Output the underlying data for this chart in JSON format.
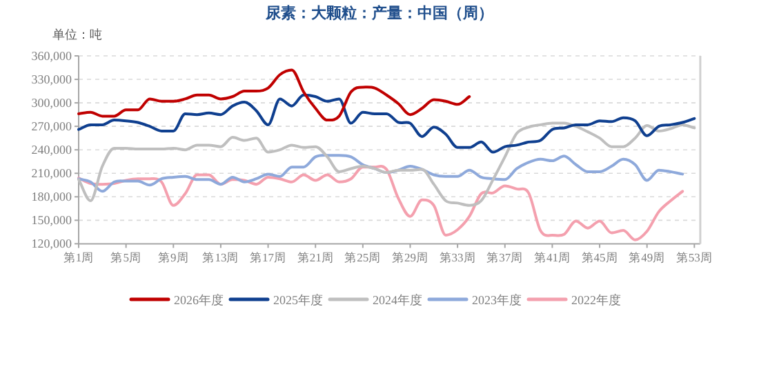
{
  "chart_data": {
    "type": "line",
    "title": "尿素：大颗粒：产量：中国（周）",
    "ylabel": "单位：吨",
    "categories": [
      "第1周",
      null,
      null,
      null,
      "第5周",
      null,
      null,
      null,
      "第9周",
      null,
      null,
      null,
      "第13周",
      null,
      null,
      null,
      "第17周",
      null,
      null,
      null,
      "第21周",
      null,
      null,
      null,
      "第25周",
      null,
      null,
      null,
      "第29周",
      null,
      null,
      null,
      "第33周",
      null,
      null,
      null,
      "第37周",
      null,
      null,
      null,
      "第41周",
      null,
      null,
      null,
      "第45周",
      null,
      null,
      null,
      "第49周",
      null,
      null,
      null,
      "第53周"
    ],
    "ylim": [
      120000,
      360000
    ],
    "yticks": [
      {
        "value": 120000,
        "label": "120,000"
      },
      {
        "value": 150000,
        "label": "150,000"
      },
      {
        "value": 180000,
        "label": "180,000"
      },
      {
        "value": 210000,
        "label": "210,000"
      },
      {
        "value": 240000,
        "label": "240,000"
      },
      {
        "value": 270000,
        "label": "270,000"
      },
      {
        "value": 300000,
        "label": "300,000"
      },
      {
        "value": 330000,
        "label": "330,000"
      },
      {
        "value": 360000,
        "label": "360,000"
      }
    ],
    "grid": "y",
    "legend": "bottom",
    "marker": "none",
    "line_style": "solid",
    "series": [
      {
        "name": "2026年度",
        "color": "#c00000",
        "values": [
          286000,
          288000,
          283000,
          283000,
          291000,
          291000,
          305000,
          302000,
          302000,
          305000,
          310000,
          310000,
          305000,
          308000,
          315000,
          315000,
          319000,
          336000,
          342000,
          314000,
          293000,
          278000,
          283000,
          314000,
          320000,
          319000,
          310000,
          299000,
          285000,
          293000,
          304000,
          302000,
          298000,
          308000,
          null,
          null,
          null,
          null,
          null,
          null,
          null,
          null,
          null,
          null,
          null,
          null,
          null,
          null,
          null,
          null,
          null,
          null,
          null
        ]
      },
      {
        "name": "2025年度",
        "color": "#0f3f8f",
        "values": [
          266000,
          272000,
          272000,
          278000,
          277000,
          275000,
          270000,
          264000,
          264000,
          286000,
          285000,
          287000,
          285000,
          296000,
          301000,
          290000,
          272000,
          305000,
          296000,
          310000,
          308000,
          302000,
          305000,
          274000,
          288000,
          286000,
          286000,
          275000,
          274000,
          257000,
          269000,
          260000,
          243000,
          243000,
          250000,
          237000,
          244000,
          246000,
          250000,
          252000,
          266000,
          268000,
          272000,
          272000,
          277000,
          276000,
          281000,
          277000,
          258000,
          270000,
          272000,
          275000,
          280000
        ]
      },
      {
        "name": "2024年度",
        "color": "#bfbfbf",
        "values": [
          202000,
          175000,
          219000,
          242000,
          242000,
          241000,
          241000,
          241000,
          242000,
          240000,
          246000,
          246000,
          244000,
          256000,
          252000,
          255000,
          237000,
          240000,
          246000,
          243000,
          244000,
          231000,
          212000,
          216000,
          219000,
          216000,
          211000,
          214000,
          214000,
          215000,
          196000,
          175000,
          172000,
          169000,
          175000,
          202000,
          231000,
          261000,
          269000,
          272000,
          274000,
          274000,
          270000,
          263000,
          255000,
          244000,
          244000,
          255000,
          271000,
          264000,
          267000,
          272000,
          268000
        ]
      },
      {
        "name": "2023年度",
        "color": "#8ea9db",
        "values": [
          203000,
          199000,
          187000,
          199000,
          200000,
          200000,
          195000,
          203000,
          205000,
          206000,
          202000,
          202000,
          196000,
          205000,
          199000,
          203000,
          209000,
          206000,
          218000,
          218000,
          231000,
          233000,
          233000,
          231000,
          221000,
          216000,
          211000,
          214000,
          219000,
          215000,
          208000,
          206000,
          206000,
          214000,
          205000,
          203000,
          202000,
          216000,
          224000,
          228000,
          226000,
          232000,
          221000,
          212000,
          212000,
          219000,
          228000,
          221000,
          201000,
          214000,
          212000,
          209000,
          null
        ]
      },
      {
        "name": "2022年度",
        "color": "#f4a0ae",
        "values": [
          204000,
          197000,
          196000,
          197000,
          201000,
          203000,
          203000,
          199000,
          169000,
          184000,
          208000,
          208000,
          196000,
          202000,
          201000,
          196000,
          205000,
          203000,
          199000,
          208000,
          201000,
          208000,
          199000,
          203000,
          218000,
          218000,
          215000,
          178000,
          155000,
          176000,
          169000,
          131000,
          138000,
          155000,
          184000,
          185000,
          194000,
          190000,
          185000,
          137000,
          131000,
          132000,
          149000,
          140000,
          149000,
          134000,
          137000,
          125000,
          136000,
          161000,
          175000,
          187000,
          null
        ]
      }
    ]
  }
}
